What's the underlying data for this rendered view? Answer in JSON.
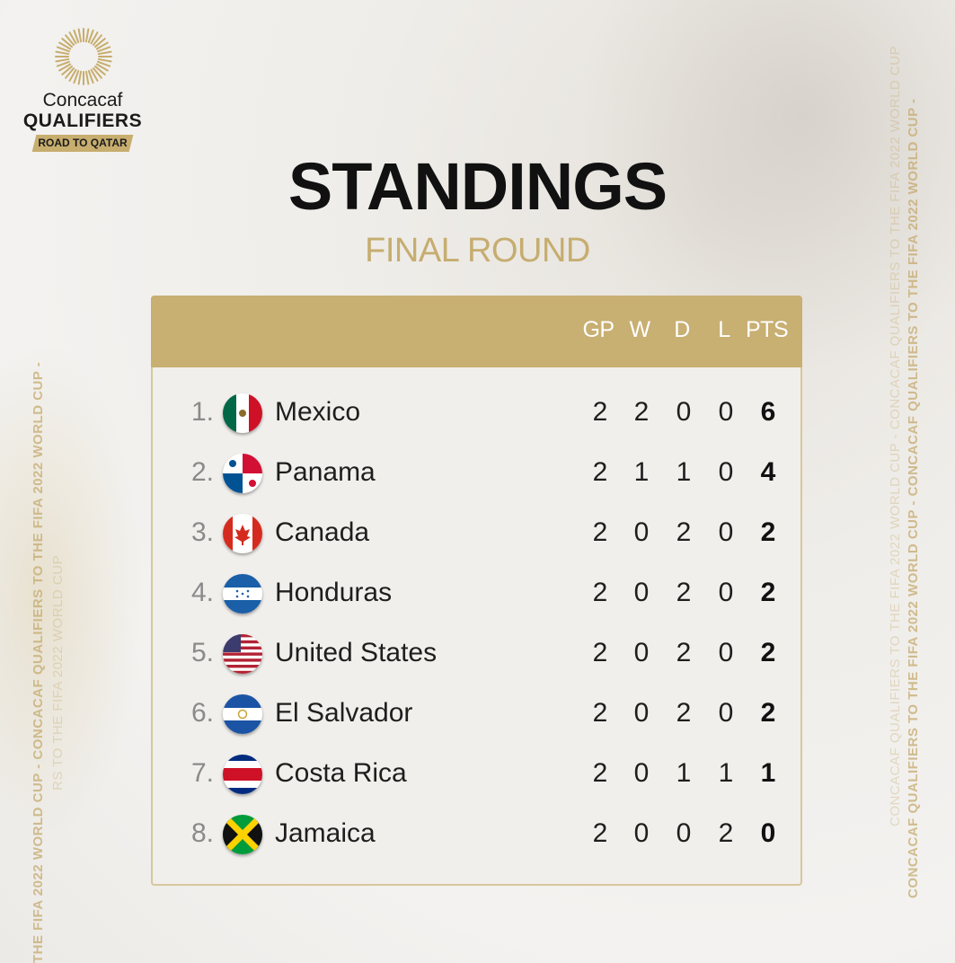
{
  "brand": {
    "line1": "Concacaf",
    "line2": "QUALIFIERS",
    "tag": "ROAD TO QATAR"
  },
  "title": "STANDINGS",
  "subtitle": "FINAL ROUND",
  "side_text": {
    "right_outer": "CONCACAF QUALIFIERS TO THE FIFA 2022 WORLD CUP - CONCACAF QUALIFIERS TO THE FIFA 2022 WORLD CUP -",
    "right_inner": "CONCACAF QUALIFIERS TO THE FIFA 2022 WORLD CUP - CONCACAF QUALIFIERS TO THE FIFA 2022 WORLD CUP",
    "left_outer": "THE FIFA 2022 WORLD CUP - CONCACAF QUALIFIERS TO THE FIFA 2022 WORLD CUP -",
    "left_inner": "RS TO THE FIFA 2022 WORLD CUP"
  },
  "columns": [
    "GP",
    "W",
    "D",
    "L",
    "PTS"
  ],
  "rows": [
    {
      "rank": "1.",
      "flag": "mexico-flag-icon",
      "team": "Mexico",
      "gp": "2",
      "w": "2",
      "d": "0",
      "l": "0",
      "pts": "6"
    },
    {
      "rank": "2.",
      "flag": "panama-flag-icon",
      "team": "Panama",
      "gp": "2",
      "w": "1",
      "d": "1",
      "l": "0",
      "pts": "4"
    },
    {
      "rank": "3.",
      "flag": "canada-flag-icon",
      "team": "Canada",
      "gp": "2",
      "w": "0",
      "d": "2",
      "l": "0",
      "pts": "2"
    },
    {
      "rank": "4.",
      "flag": "honduras-flag-icon",
      "team": "Honduras",
      "gp": "2",
      "w": "0",
      "d": "2",
      "l": "0",
      "pts": "2"
    },
    {
      "rank": "5.",
      "flag": "usa-flag-icon",
      "team": "United States",
      "gp": "2",
      "w": "0",
      "d": "2",
      "l": "0",
      "pts": "2"
    },
    {
      "rank": "6.",
      "flag": "el-salvador-flag-icon",
      "team": "El Salvador",
      "gp": "2",
      "w": "0",
      "d": "2",
      "l": "0",
      "pts": "2"
    },
    {
      "rank": "7.",
      "flag": "costa-rica-flag-icon",
      "team": "Costa Rica",
      "gp": "2",
      "w": "0",
      "d": "1",
      "l": "1",
      "pts": "1"
    },
    {
      "rank": "8.",
      "flag": "jamaica-flag-icon",
      "team": "Jamaica",
      "gp": "2",
      "w": "0",
      "d": "0",
      "l": "2",
      "pts": "0"
    }
  ],
  "colors": {
    "gold": "#c8af72",
    "title": "#111111",
    "subtitle": "#c6ad70"
  }
}
